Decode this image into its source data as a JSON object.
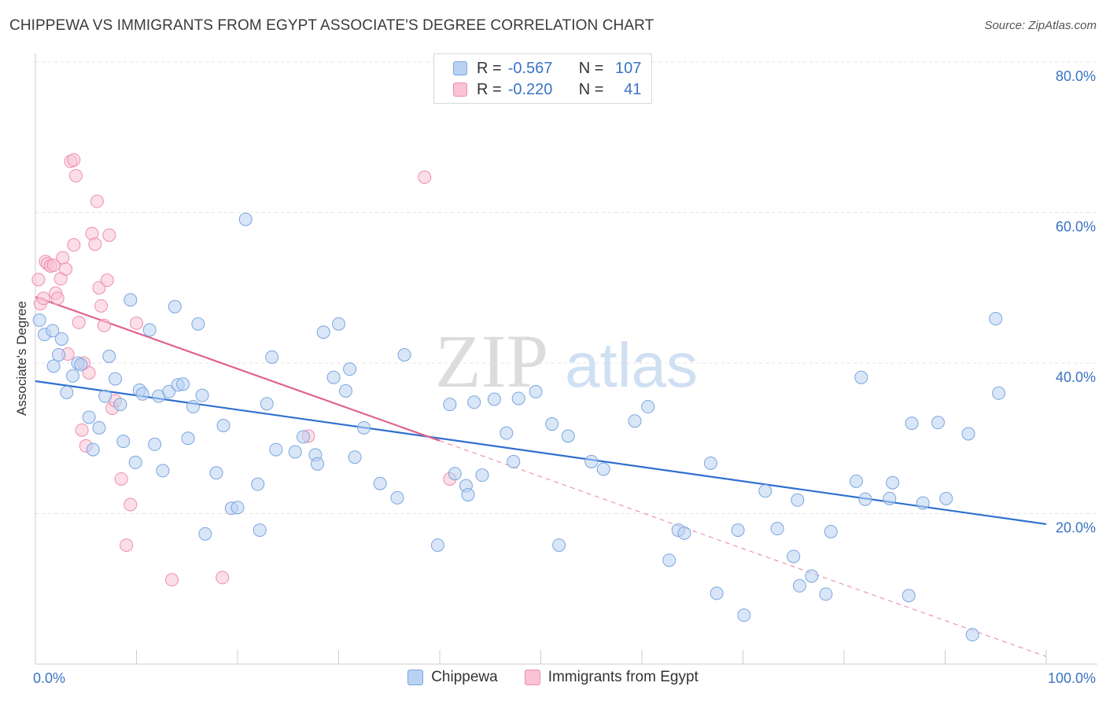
{
  "title": "CHIPPEWA VS IMMIGRANTS FROM EGYPT ASSOCIATE'S DEGREE CORRELATION CHART",
  "source": "Source: ZipAtlas.com",
  "watermark": {
    "part1": "ZIP",
    "part2": "atlas"
  },
  "legend_top": [
    {
      "r_label": "R =",
      "r_value": "-0.567",
      "n_label": "N =",
      "n_value": "107"
    },
    {
      "r_label": "R =",
      "r_value": "-0.220",
      "n_label": "N =",
      "n_value": "41"
    }
  ],
  "legend_bottom": [
    "Chippewa",
    "Immigrants from Egypt"
  ],
  "colors": {
    "chippewa_fill": "#b9d2f2",
    "chippewa_stroke": "#7aa6de",
    "chippewa_line": "#2f6fd0",
    "egypt_fill": "#f9c3d3",
    "egypt_stroke": "#ee8fae",
    "egypt_line": "#e0648f",
    "axis_label": "#3a74c4",
    "grid": "#e4e4e4"
  },
  "chart_data": {
    "type": "scatter",
    "title": "CHIPPEWA VS IMMIGRANTS FROM EGYPT ASSOCIATE'S DEGREE CORRELATION CHART",
    "xlabel": "",
    "ylabel": "Associate's Degree",
    "xlim": [
      0,
      100
    ],
    "ylim": [
      0,
      80
    ],
    "x_tick_labels": [
      "0.0%",
      "100.0%"
    ],
    "y_ticks": [
      20,
      40,
      60,
      80
    ],
    "y_tick_labels": [
      "20.0%",
      "40.0%",
      "60.0%",
      "80.0%"
    ],
    "grid": true,
    "legend_placement": "top-center",
    "series": [
      {
        "name": "Chippewa",
        "r": -0.567,
        "n": 107,
        "trend": {
          "x": [
            0,
            100
          ],
          "y": [
            37.6,
            18.6
          ]
        },
        "points": [
          [
            0.4,
            45.7
          ],
          [
            0.9,
            43.8
          ],
          [
            1.7,
            44.3
          ],
          [
            1.8,
            39.6
          ],
          [
            2.3,
            41.1
          ],
          [
            2.6,
            43.2
          ],
          [
            3.1,
            36.1
          ],
          [
            3.7,
            38.3
          ],
          [
            4.2,
            40.0
          ],
          [
            4.5,
            39.8
          ],
          [
            5.3,
            32.8
          ],
          [
            5.7,
            28.5
          ],
          [
            6.3,
            31.4
          ],
          [
            6.9,
            35.6
          ],
          [
            7.3,
            40.9
          ],
          [
            7.9,
            37.9
          ],
          [
            8.4,
            34.5
          ],
          [
            8.7,
            29.6
          ],
          [
            9.4,
            48.4
          ],
          [
            9.9,
            26.8
          ],
          [
            10.3,
            36.4
          ],
          [
            10.6,
            35.9
          ],
          [
            11.3,
            44.4
          ],
          [
            11.8,
            29.2
          ],
          [
            12.2,
            35.6
          ],
          [
            12.6,
            25.7
          ],
          [
            13.2,
            36.2
          ],
          [
            13.8,
            47.5
          ],
          [
            14.1,
            37.1
          ],
          [
            14.6,
            37.2
          ],
          [
            15.1,
            30.0
          ],
          [
            15.6,
            34.2
          ],
          [
            16.1,
            45.2
          ],
          [
            16.5,
            35.7
          ],
          [
            16.8,
            17.3
          ],
          [
            17.9,
            25.4
          ],
          [
            18.6,
            31.7
          ],
          [
            19.4,
            20.7
          ],
          [
            20.0,
            20.8
          ],
          [
            20.8,
            59.1
          ],
          [
            22.0,
            23.9
          ],
          [
            22.2,
            17.8
          ],
          [
            22.9,
            34.6
          ],
          [
            23.4,
            40.8
          ],
          [
            23.8,
            28.5
          ],
          [
            25.7,
            28.2
          ],
          [
            26.5,
            30.2
          ],
          [
            27.7,
            27.8
          ],
          [
            27.9,
            26.6
          ],
          [
            28.5,
            44.1
          ],
          [
            29.5,
            38.1
          ],
          [
            30.0,
            45.2
          ],
          [
            30.7,
            36.3
          ],
          [
            31.1,
            39.2
          ],
          [
            31.6,
            27.5
          ],
          [
            32.5,
            31.4
          ],
          [
            34.1,
            24.0
          ],
          [
            35.8,
            22.1
          ],
          [
            36.5,
            41.1
          ],
          [
            39.8,
            15.8
          ],
          [
            41.0,
            34.5
          ],
          [
            41.5,
            25.3
          ],
          [
            42.6,
            23.7
          ],
          [
            42.8,
            22.5
          ],
          [
            43.4,
            34.8
          ],
          [
            44.2,
            25.1
          ],
          [
            45.4,
            35.2
          ],
          [
            46.6,
            30.7
          ],
          [
            47.3,
            26.9
          ],
          [
            47.8,
            35.3
          ],
          [
            49.5,
            36.2
          ],
          [
            51.1,
            31.9
          ],
          [
            51.8,
            15.8
          ],
          [
            52.7,
            30.3
          ],
          [
            55.0,
            26.9
          ],
          [
            56.2,
            25.9
          ],
          [
            59.3,
            32.3
          ],
          [
            60.6,
            34.2
          ],
          [
            62.7,
            13.8
          ],
          [
            63.6,
            17.8
          ],
          [
            64.2,
            17.4
          ],
          [
            66.8,
            26.7
          ],
          [
            67.4,
            9.4
          ],
          [
            69.5,
            17.8
          ],
          [
            70.1,
            6.5
          ],
          [
            72.2,
            23.0
          ],
          [
            73.4,
            18.0
          ],
          [
            75.0,
            14.3
          ],
          [
            75.4,
            21.8
          ],
          [
            75.6,
            10.4
          ],
          [
            76.8,
            11.7
          ],
          [
            78.2,
            9.3
          ],
          [
            78.7,
            17.6
          ],
          [
            81.2,
            24.3
          ],
          [
            81.7,
            38.1
          ],
          [
            82.1,
            21.9
          ],
          [
            84.5,
            22.0
          ],
          [
            84.8,
            24.1
          ],
          [
            86.4,
            9.1
          ],
          [
            86.7,
            32.0
          ],
          [
            87.8,
            21.4
          ],
          [
            89.3,
            32.1
          ],
          [
            90.1,
            22.0
          ],
          [
            92.3,
            30.6
          ],
          [
            92.7,
            3.9
          ],
          [
            95.0,
            45.9
          ],
          [
            95.3,
            36.0
          ]
        ]
      },
      {
        "name": "Immigrants from Egypt",
        "r": -0.22,
        "n": 41,
        "trend": {
          "x": [
            0,
            100
          ],
          "y": [
            48.8,
            1.0
          ]
        },
        "trend_solid_until_x": 40,
        "points": [
          [
            0.3,
            51.1
          ],
          [
            0.5,
            47.9
          ],
          [
            0.8,
            48.6
          ],
          [
            1.0,
            53.5
          ],
          [
            1.2,
            53.2
          ],
          [
            1.5,
            52.9
          ],
          [
            1.8,
            53.0
          ],
          [
            2.0,
            49.3
          ],
          [
            2.2,
            48.6
          ],
          [
            2.5,
            51.2
          ],
          [
            2.7,
            54.0
          ],
          [
            3.0,
            52.5
          ],
          [
            3.2,
            41.2
          ],
          [
            3.5,
            66.8
          ],
          [
            3.8,
            67.0
          ],
          [
            3.8,
            55.7
          ],
          [
            4.0,
            64.9
          ],
          [
            4.3,
            45.4
          ],
          [
            4.6,
            31.1
          ],
          [
            4.8,
            40.0
          ],
          [
            5.0,
            29.0
          ],
          [
            5.3,
            38.7
          ],
          [
            5.6,
            57.2
          ],
          [
            5.9,
            55.8
          ],
          [
            6.1,
            61.5
          ],
          [
            6.3,
            50.0
          ],
          [
            6.5,
            47.6
          ],
          [
            6.8,
            45.0
          ],
          [
            7.1,
            51.0
          ],
          [
            7.3,
            57.0
          ],
          [
            7.6,
            34.0
          ],
          [
            7.9,
            35.0
          ],
          [
            8.5,
            24.6
          ],
          [
            9.0,
            15.8
          ],
          [
            9.4,
            21.2
          ],
          [
            10.0,
            45.3
          ],
          [
            13.5,
            11.2
          ],
          [
            18.5,
            11.5
          ],
          [
            27.0,
            30.3
          ],
          [
            38.5,
            64.7
          ],
          [
            41.0,
            24.6
          ]
        ]
      }
    ]
  }
}
